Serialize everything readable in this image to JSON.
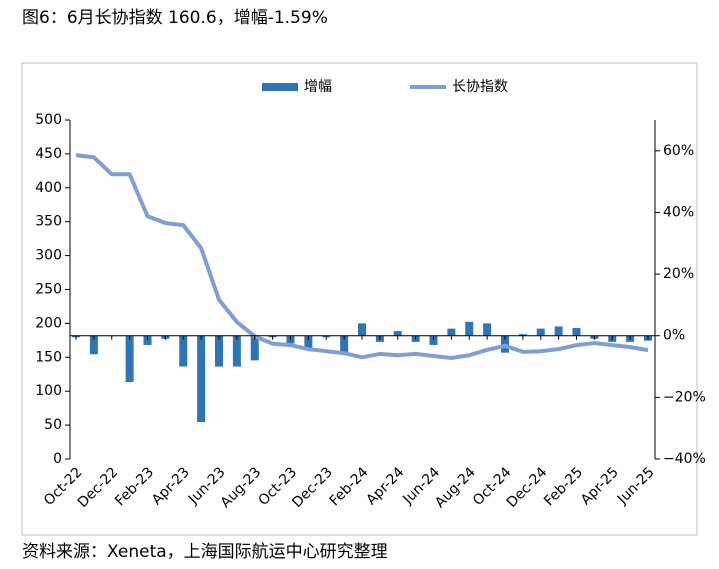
{
  "title": "图6：6月长协指数 160.6，增幅-1.59%",
  "source": "资料来源：Xeneta，上海国际航运中心研究整理",
  "chart_data": {
    "type": "combo",
    "categories": [
      "Oct-22",
      null,
      "Dec-22",
      null,
      "Feb-23",
      null,
      "Apr-23",
      null,
      "Jun-23",
      null,
      "Aug-23",
      null,
      "Oct-23",
      null,
      "Dec-23",
      null,
      "Feb-24",
      null,
      "Apr-24",
      null,
      "Jun-24",
      null,
      "Aug-24",
      null,
      "Oct-24",
      null,
      "Dec-24",
      null,
      "Feb-25",
      null,
      "Apr-25",
      null,
      "Jun-25"
    ],
    "series": [
      {
        "name": "增幅",
        "type": "bar",
        "axis": "y2",
        "color": "#2e75b6",
        "values": [
          -0.5,
          -6,
          0,
          -15,
          -3,
          -1,
          -10,
          -28,
          -10,
          -10,
          -8,
          -0.5,
          -2.5,
          -4,
          -0.5,
          -6,
          4,
          -2,
          1.5,
          -2,
          -3,
          2.3,
          4.5,
          4,
          -5.5,
          0.5,
          2.3,
          3,
          2.5,
          -1,
          -2,
          -2,
          -1.59
        ]
      },
      {
        "name": "长协指数",
        "type": "line",
        "axis": "y",
        "color": "#7f9fd4",
        "values": [
          448,
          445,
          420,
          420,
          358,
          348,
          345,
          311,
          235,
          202,
          181,
          170,
          168,
          162,
          159,
          156,
          150,
          155,
          153,
          155,
          152,
          149,
          153,
          161,
          167,
          158,
          159,
          162,
          168,
          171,
          168,
          165,
          160.6
        ]
      }
    ],
    "ylim": [
      0,
      500
    ],
    "yticks": [
      0,
      50,
      100,
      150,
      200,
      250,
      300,
      350,
      400,
      450,
      500
    ],
    "y2lim": [
      -40,
      70
    ],
    "y2ticks": [
      {
        "value": -40,
        "label": "−40%"
      },
      {
        "value": -20,
        "label": "−20%"
      },
      {
        "value": 0,
        "label": "0%"
      },
      {
        "value": 20,
        "label": "20%"
      },
      {
        "value": 40,
        "label": "40%"
      },
      {
        "value": 60,
        "label": "60%"
      }
    ],
    "legend": "top"
  }
}
